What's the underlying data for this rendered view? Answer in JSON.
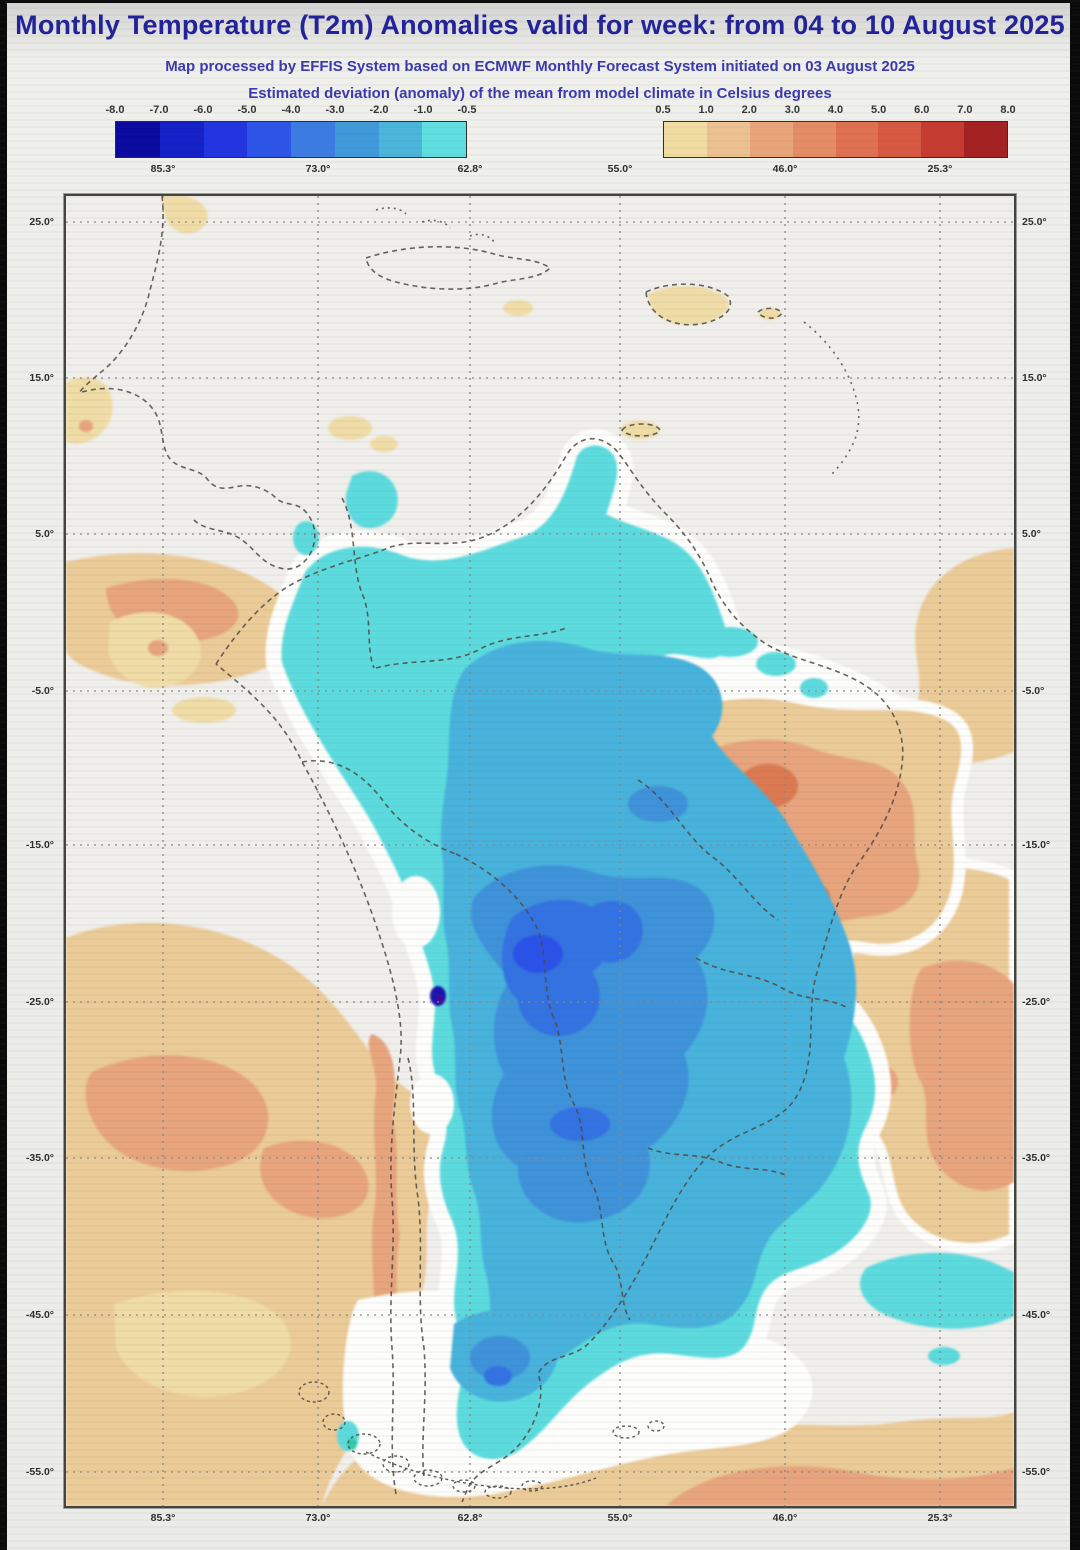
{
  "header": {
    "title": "Monthly Temperature (T2m) Anomalies valid for week: from 04 to 10 August 2025",
    "subtitle_line1": "Map processed by EFFIS System based on ECMWF Monthly Forecast System initiated on 03 August 2025",
    "subtitle_line2": "Estimated deviation (anomaly) of the mean from model climate in Celsius degrees"
  },
  "legend": {
    "negative": {
      "tick_labels": [
        "-8.0",
        "-7.0",
        "-6.0",
        "-5.0",
        "-4.0",
        "-3.0",
        "-2.0",
        "-1.0",
        "-0.5"
      ],
      "segment_colors": [
        "#0a0aa0",
        "#1420c8",
        "#2134e0",
        "#2c55e8",
        "#3b7ce2",
        "#4099da",
        "#49b6da",
        "#5fdfe0"
      ]
    },
    "positive": {
      "tick_labels": [
        "0.5",
        "1.0",
        "2.0",
        "3.0",
        "4.0",
        "5.0",
        "6.0",
        "7.0",
        "8.0"
      ],
      "segment_colors": [
        "#f1dda2",
        "#edc290",
        "#e9a67b",
        "#e58c66",
        "#df7050",
        "#d75942",
        "#c63b30",
        "#a52020"
      ]
    }
  },
  "axes": {
    "lon_labels_top": [
      "85.3°",
      "73.0°",
      "62.8°",
      "55.0°",
      "46.0°",
      "25.3°"
    ],
    "lon_labels_bottom": [
      "85.3°",
      "73.0°",
      "62.8°",
      "55.0°",
      "46.0°",
      "25.3°"
    ],
    "lat_labels_left": [
      "25.0°",
      "15.0°",
      "5.0°",
      "-5.0°",
      "-15.0°",
      "-25.0°",
      "-35.0°",
      "-45.0°",
      "-55.0°"
    ],
    "lat_labels_right": [
      "25.0°",
      "15.0°",
      "5.0°",
      "-5.0°",
      "-15.0°",
      "-25.0°",
      "-35.0°",
      "-45.0°",
      "-55.0°"
    ]
  },
  "palette": {
    "title_text": "#22229b",
    "subtitle_text": "#3a3aad",
    "tick_text": "#333333",
    "axis_text": "#2e2e2e",
    "map_bg": "#f0efec",
    "neutral": "#fdfdfb",
    "tan1": "#f0dca6",
    "tan2": "#ebcb97",
    "salmon": "#e7a47d",
    "orange": "#e08a62",
    "red_spot": "#db7a52",
    "c1": "#5cdbde",
    "c2": "#47b2dc",
    "c3": "#3e92da",
    "c4": "#3372e2",
    "c5": "#2a52e8",
    "navy": "#1c15ad",
    "deep_purple": "#3a0d9e",
    "teal": "#35c9ac",
    "grid": "#8a8a84",
    "border_line": "#4f4a42",
    "frame": "#44443f"
  }
}
